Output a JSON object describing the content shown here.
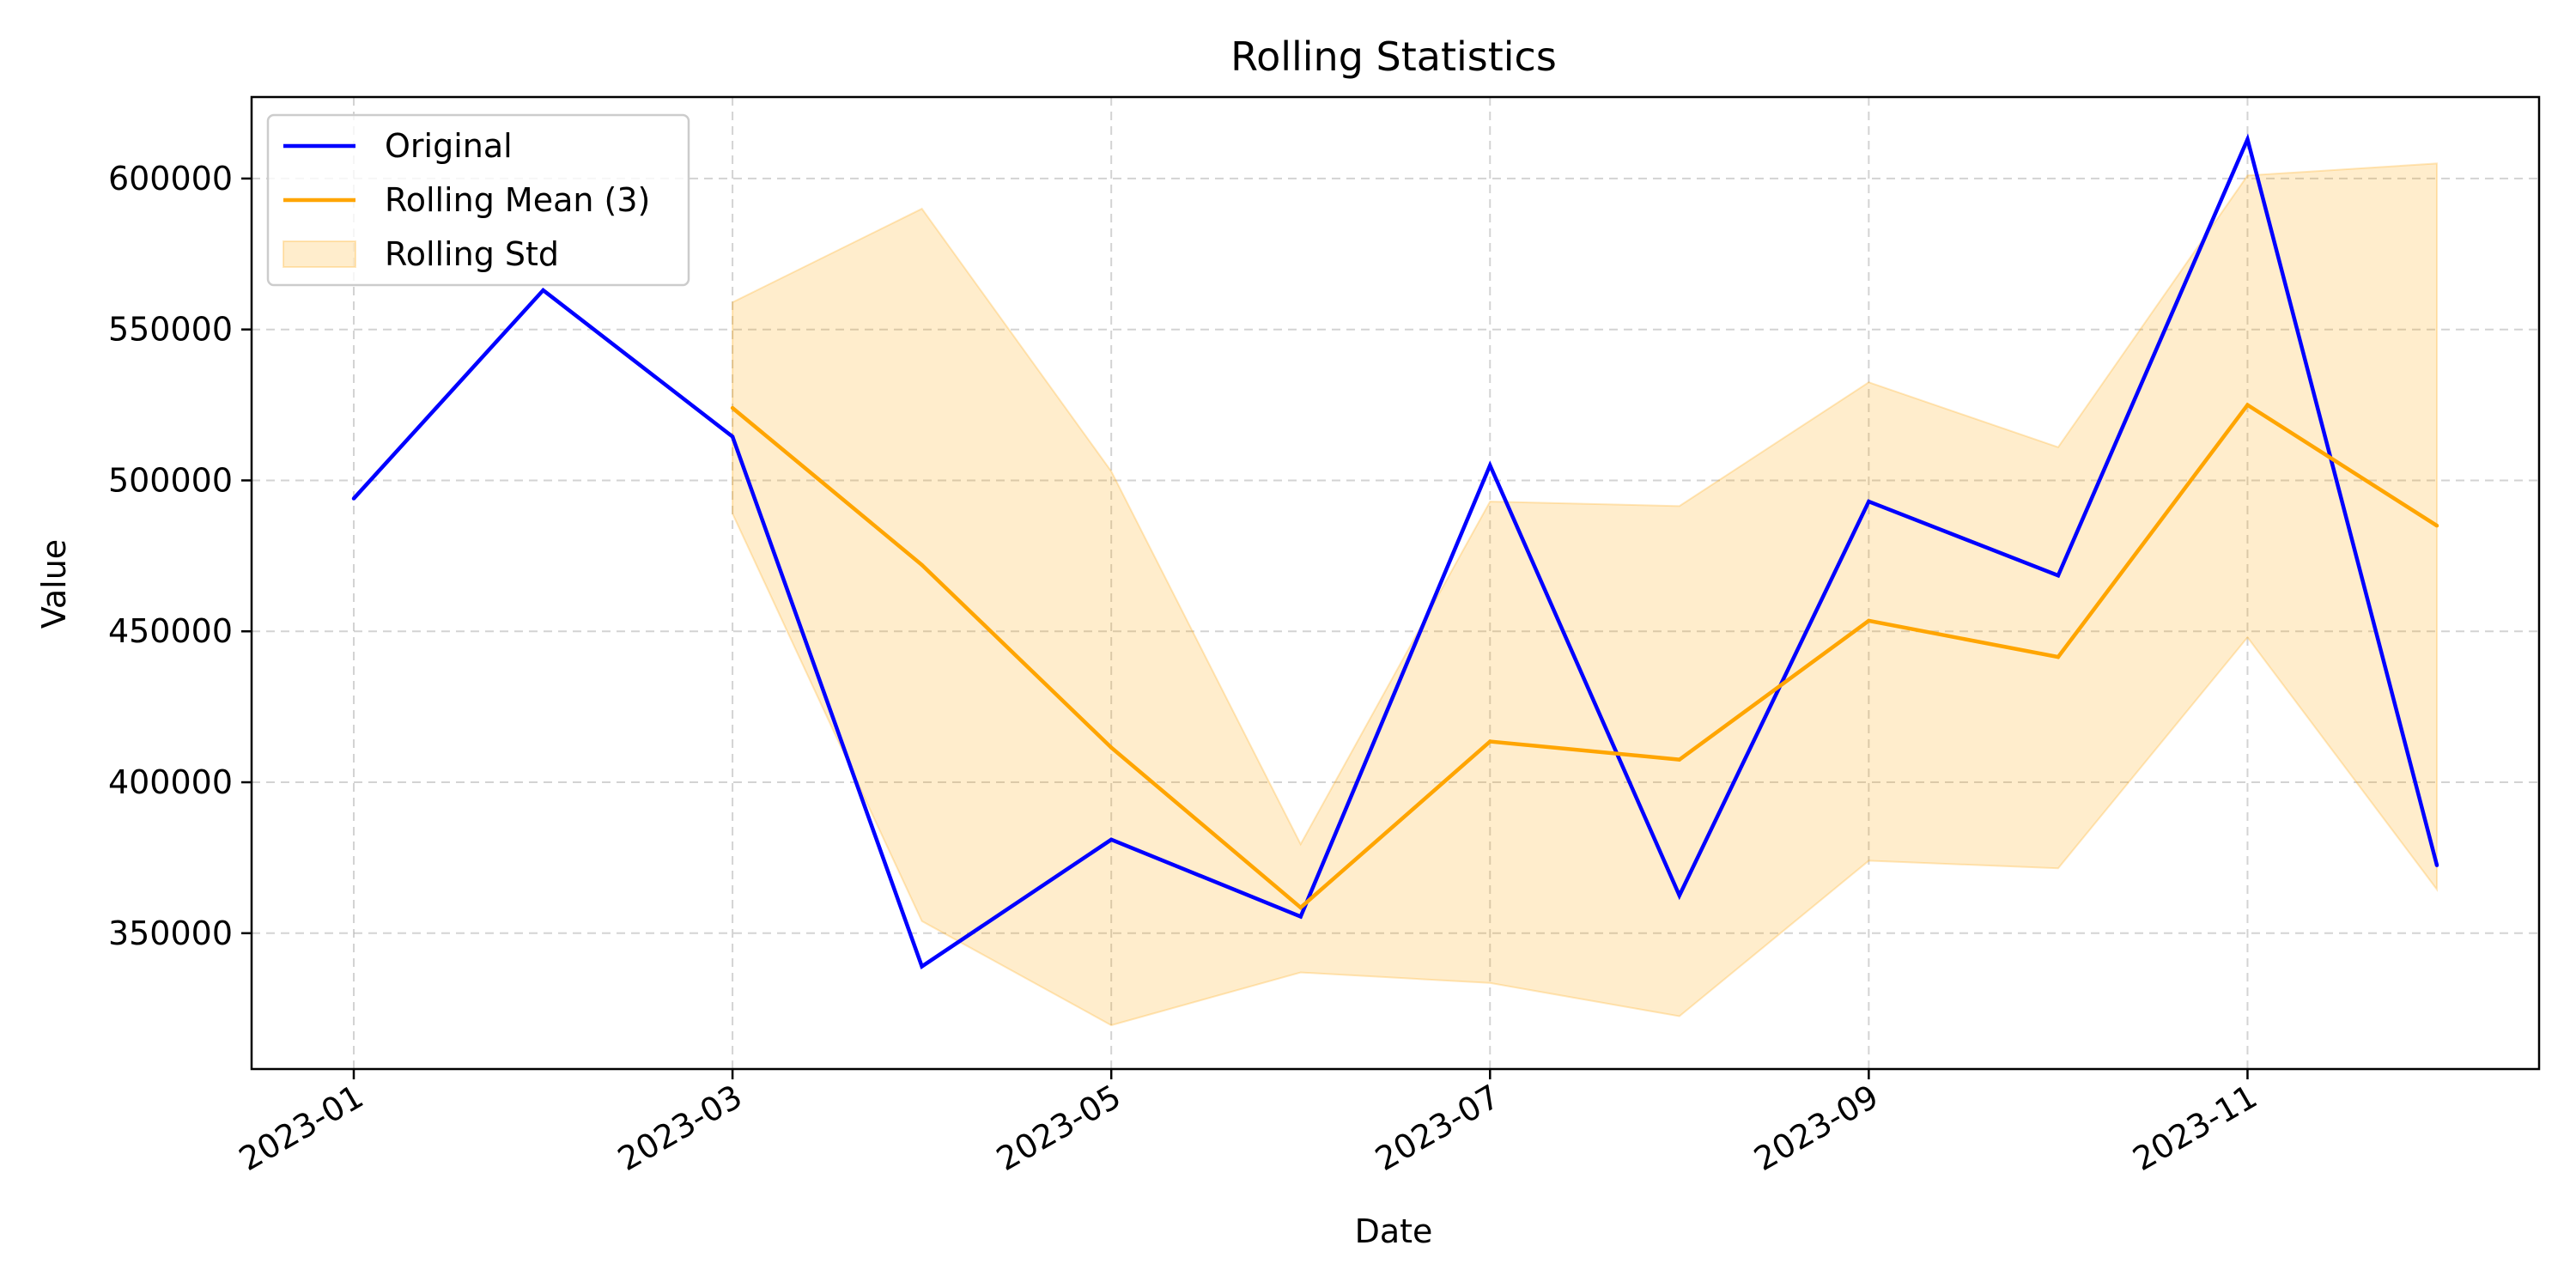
{
  "chart_data": {
    "type": "line",
    "title": "Rolling Statistics",
    "xlabel": "Date",
    "ylabel": "Value",
    "x": [
      "2023-01",
      "2023-02",
      "2023-03",
      "2023-04",
      "2023-05",
      "2023-06",
      "2023-07",
      "2023-08",
      "2023-09",
      "2023-10",
      "2023-11",
      "2023-12"
    ],
    "x_tick_labels": [
      "2023-01",
      "2023-03",
      "2023-05",
      "2023-07",
      "2023-09",
      "2023-11"
    ],
    "y_ticks": [
      350000,
      400000,
      450000,
      500000,
      550000,
      600000
    ],
    "y_tick_labels": [
      "350000",
      "400000",
      "450000",
      "500000",
      "550000",
      "600000"
    ],
    "ylim": [
      305000,
      627000
    ],
    "grid": true,
    "legend_position": "upper-left",
    "series": [
      {
        "name": "Original",
        "color": "#0000ff",
        "values": [
          494000,
          563000,
          514500,
          339000,
          381000,
          355500,
          505000,
          362500,
          493000,
          468500,
          613000,
          372500
        ]
      },
      {
        "name": "Rolling Mean (3)",
        "color": "#ffa500",
        "values": [
          null,
          null,
          524000,
          472000,
          411500,
          358500,
          413500,
          407500,
          453500,
          441500,
          525000,
          485000
        ]
      }
    ],
    "band": {
      "name": "Rolling Std",
      "color": "#ffa500",
      "opacity": 0.2,
      "upper": [
        null,
        null,
        559000,
        590000,
        503000,
        379500,
        493000,
        491500,
        532500,
        511000,
        601000,
        605000
      ],
      "lower": [
        null,
        null,
        489000,
        354000,
        319500,
        337000,
        333500,
        322500,
        374000,
        371500,
        448000,
        364500
      ]
    }
  }
}
